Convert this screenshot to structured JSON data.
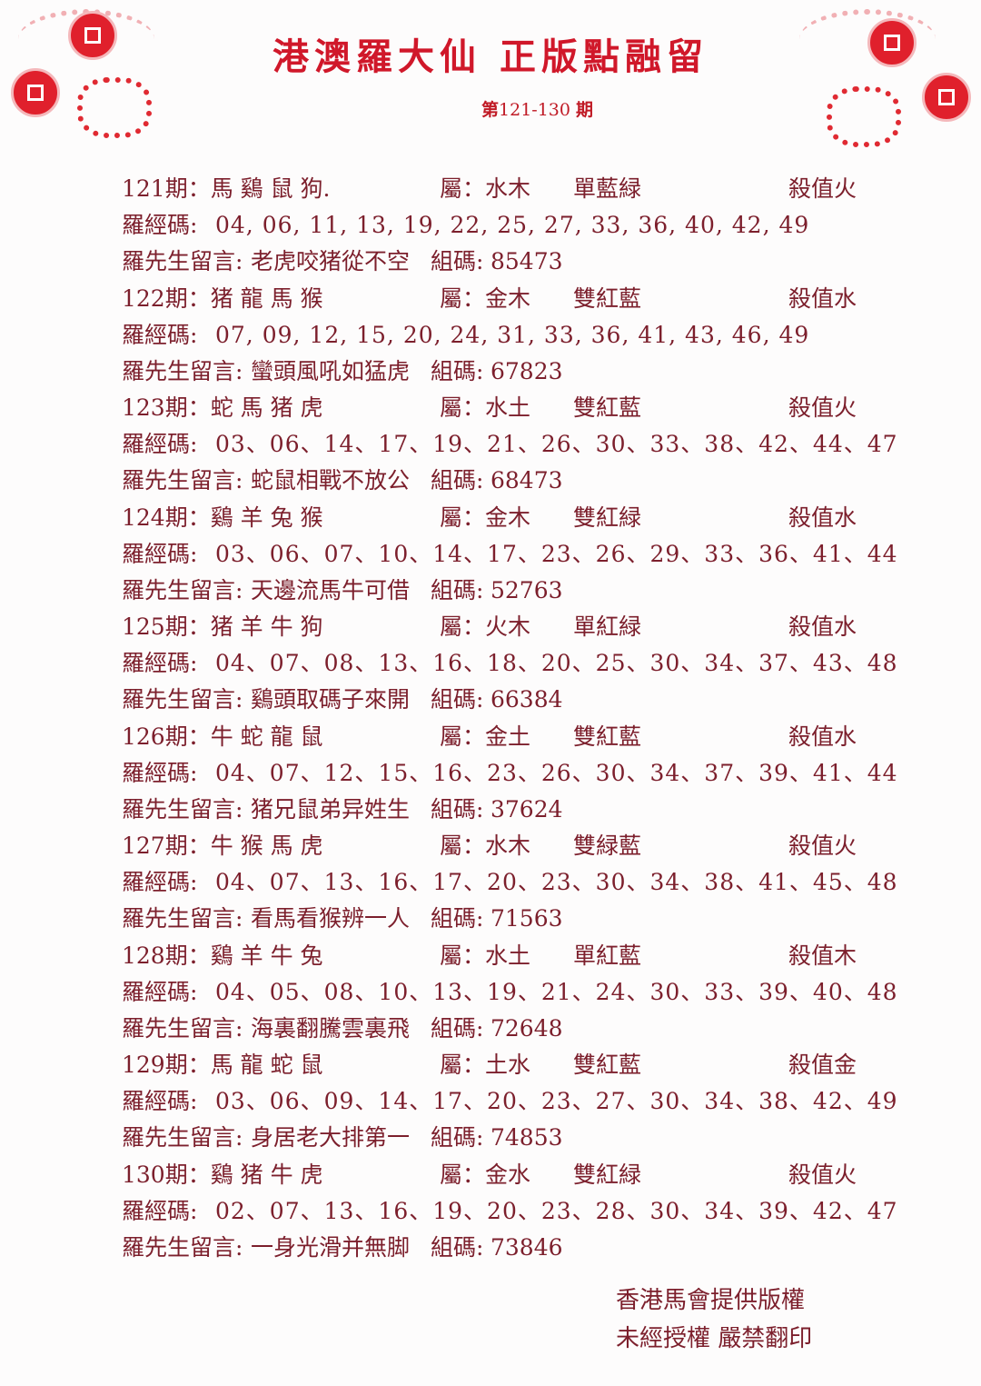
{
  "title": "港澳羅大仙 正版點融留",
  "issue_range": {
    "prefix": "第",
    "range": "121-130",
    "suffix": "期"
  },
  "labels": {
    "attr": "屬：",
    "code_label": "羅經碼:",
    "msg_label": "羅先生留言:",
    "group_label": "組碼:"
  },
  "entries": [
    {
      "period": "121期：",
      "zodiac": "馬 鷄 鼠 狗.",
      "attr": "水木",
      "color": "單藍緑",
      "kill": "殺值火",
      "numbers": "04, 06, 11, 13, 19, 22, 25, 27, 33, 36, 40, 42, 49",
      "message": "老虎咬猪從不空",
      "group": "85473"
    },
    {
      "period": "122期：",
      "zodiac": "猪 龍 馬 猴",
      "attr": "金木",
      "color": "雙紅藍",
      "kill": "殺值水",
      "numbers": "07, 09, 12, 15, 20, 24, 31, 33, 36, 41, 43, 46, 49",
      "message": "蠻頭風吼如猛虎",
      "group": "67823"
    },
    {
      "period": "123期：",
      "zodiac": "蛇 馬 猪 虎",
      "attr": "水土",
      "color": "雙紅藍",
      "kill": "殺值火",
      "numbers": "03、06、14、17、19、21、26、30、33、38、42、44、47",
      "message": "蛇鼠相戰不放公",
      "group": "68473"
    },
    {
      "period": "124期：",
      "zodiac": "鷄 羊 兔 猴",
      "attr": "金木",
      "color": "雙紅緑",
      "kill": "殺值水",
      "numbers": "03、06、07、10、14、17、23、26、29、33、36、41、44",
      "message": "天邊流馬牛可借",
      "group": "52763"
    },
    {
      "period": "125期：",
      "zodiac": "猪 羊 牛 狗",
      "attr": "火木",
      "color": "單紅緑",
      "kill": "殺值水",
      "numbers": "04、07、08、13、16、18、20、25、30、34、37、43、48",
      "message": "鷄頭取碼子來開",
      "group": "66384"
    },
    {
      "period": "126期：",
      "zodiac": "牛 蛇 龍 鼠",
      "attr": "金土",
      "color": "雙紅藍",
      "kill": "殺值水",
      "numbers": "04、07、12、15、16、23、26、30、34、37、39、41、44",
      "message": "猪兄鼠弟异姓生",
      "group": "37624"
    },
    {
      "period": "127期：",
      "zodiac": "牛 猴 馬 虎",
      "attr": "水木",
      "color": "雙緑藍",
      "kill": "殺值火",
      "numbers": "04、07、13、16、17、20、23、30、34、38、41、45、48",
      "message": "看馬看猴辨一人",
      "group": "71563"
    },
    {
      "period": "128期：",
      "zodiac": "鷄 羊 牛 兔",
      "attr": "水土",
      "color": "單紅藍",
      "kill": "殺值木",
      "numbers": "04、05、08、10、13、19、21、24、30、33、39、40、48",
      "message": "海裏翻騰雲裏飛",
      "group": "72648"
    },
    {
      "period": "129期：",
      "zodiac": "馬 龍 蛇 鼠",
      "attr": "土水",
      "color": "雙紅藍",
      "kill": "殺值金",
      "numbers": "03、06、09、14、17、20、23、27、30、34、38、42、49",
      "message": "身居老大排第一",
      "group": "74853"
    },
    {
      "period": "130期：",
      "zodiac": "鷄 猪 牛 虎",
      "attr": "金水",
      "color": "雙紅緑",
      "kill": "殺值火",
      "numbers": "02、07、13、16、19、20、23、28、30、34、39、42、47",
      "message": "一身光滑并無脚",
      "group": "73846"
    }
  ],
  "footer": {
    "line1": "香港馬會提供版權",
    "line2": "未經授權 嚴禁翻印"
  }
}
